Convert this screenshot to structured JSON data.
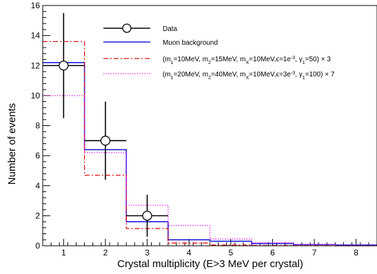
{
  "chart_data": {
    "type": "histogram",
    "xlabel": "Crystal multiplicity (E>3 MeV per crystal)",
    "ylabel": "Number of events",
    "xlim": [
      0.5,
      8.5
    ],
    "ylim": [
      0,
      16
    ],
    "x_ticks": [
      1,
      2,
      3,
      4,
      5,
      6,
      7,
      8
    ],
    "y_ticks": [
      0,
      2,
      4,
      6,
      8,
      10,
      12,
      14,
      16
    ],
    "legend_position": "top-right",
    "bin_edges": [
      0.5,
      1.5,
      2.5,
      3.5,
      4.5,
      5.5,
      6.5,
      7.5,
      8.5
    ],
    "data": {
      "name": "Data",
      "color": "#000000",
      "points": [
        {
          "x": 1,
          "y": 12,
          "yerr_low": 3.5,
          "yerr_high": 3.5
        },
        {
          "x": 2,
          "y": 7,
          "yerr_low": 2.6,
          "yerr_high": 2.6
        },
        {
          "x": 3,
          "y": 2,
          "yerr_low": 1.4,
          "yerr_high": 1.4
        }
      ]
    },
    "series": [
      {
        "name": "Muon background",
        "style": "solid",
        "color": "#1c1cd9",
        "values": [
          12.2,
          6.4,
          1.6,
          0.4,
          0.3,
          0.15,
          0.08,
          0.05
        ]
      },
      {
        "name_parts": [
          "(m",
          "1",
          "=10MeV, m",
          "2",
          "=15MeV, m",
          "X",
          "=10MeV,ϵ=1e",
          "-3",
          ", γ",
          "1",
          "=50) × 3"
        ],
        "style": "dashdot",
        "color": "#e01010",
        "values": [
          13.6,
          4.7,
          1.15,
          0.18,
          0.05,
          0.02,
          0.01,
          0.0
        ]
      },
      {
        "name_parts": [
          "(m",
          "1",
          "=20MeV, m",
          "2",
          "=40MeV, m",
          "X",
          "=10MeV,ϵ=3e",
          "-3",
          ", γ",
          "1",
          "=100) × 7"
        ],
        "style": "dotted",
        "color": "#ee22ee",
        "values": [
          10.0,
          6.2,
          2.7,
          1.35,
          0.45,
          0.2,
          0.08,
          0.03
        ]
      }
    ]
  }
}
